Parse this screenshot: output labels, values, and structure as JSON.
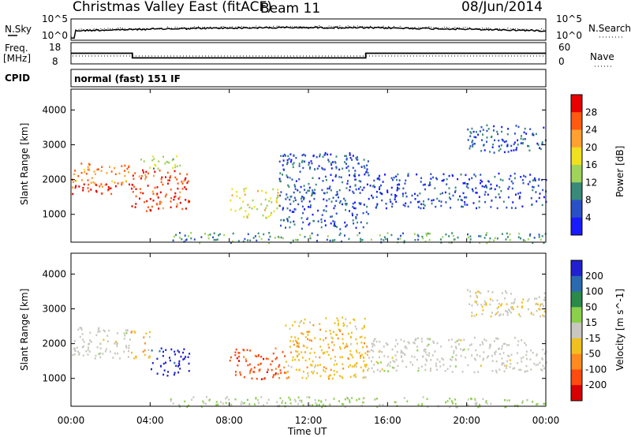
{
  "header": {
    "station": "Christmas Valley East (fitACF)",
    "beam": "Beam 11",
    "date": "08/Jun/2014"
  },
  "panels": {
    "nsky_label": "N.Sky",
    "nsky_ticks": [
      "10^5",
      "10^0"
    ],
    "nsearch_label": "N.Search",
    "nsearch_ticks": [
      "10^5",
      "10^0"
    ],
    "freq_label": "Freq.",
    "freq_unit": "[MHz]",
    "freq_ticks": [
      "18",
      "8"
    ],
    "nave_label": "Nave",
    "nave_ticks": [
      "60",
      "0"
    ],
    "cpid_label": "CPID",
    "cpid_value": "normal (fast) 151 IF"
  },
  "colors": {
    "power_scale": [
      "#1a1aff",
      "#2a50c8",
      "#3a8a7a",
      "#9fd35a",
      "#f0e020",
      "#ffa030",
      "#ff5a10",
      "#e80000"
    ],
    "velocity_scale": [
      "#2020d0",
      "#2a6ab0",
      "#2a8a4a",
      "#8ad04a",
      "#c8c8c0",
      "#f0c020",
      "#ff8a20",
      "#ff4a10",
      "#d80000"
    ]
  },
  "chart_data": [
    {
      "type": "line",
      "title": "",
      "series": [
        {
          "name": "N.Sky"
        },
        {
          "name": "N.Search"
        }
      ],
      "x_range": [
        "00:00",
        "24:00"
      ]
    },
    {
      "type": "line",
      "series": [
        {
          "name": "Freq.",
          "unit": "MHz"
        },
        {
          "name": "Nave"
        }
      ],
      "x": [
        0,
        3.1,
        3.1,
        14.9,
        14.9,
        24
      ],
      "freq_mhz": [
        13.0,
        13.0,
        10.8,
        10.8,
        13.0,
        13.0
      ]
    },
    {
      "type": "heatmap",
      "quantity": "Power",
      "colorbar_label": "Power [dB]",
      "colorbar_ticks": [
        "28",
        "24",
        "20",
        "16",
        "12",
        "8",
        "4"
      ],
      "zlim": [
        0,
        30
      ],
      "ylabel": "Slant Range [km]",
      "yticks": [
        "4000",
        "3000",
        "2000",
        "1000"
      ],
      "ylim": [
        200,
        4600
      ],
      "xlim": [
        0,
        24
      ],
      "blobs": [
        {
          "t0": 0.0,
          "t1": 3.0,
          "r0": 1800,
          "r1": 2500,
          "z": 22
        },
        {
          "t0": 0.0,
          "t1": 3.0,
          "r0": 1600,
          "r1": 1900,
          "z": 28
        },
        {
          "t0": 3.0,
          "t1": 6.0,
          "r0": 1100,
          "r1": 2300,
          "z": 26
        },
        {
          "t0": 3.5,
          "t1": 5.5,
          "r0": 2300,
          "r1": 2700,
          "z": 14
        },
        {
          "t0": 8.0,
          "t1": 10.5,
          "r0": 900,
          "r1": 1800,
          "z": 16
        },
        {
          "t0": 10.5,
          "t1": 15.0,
          "r0": 600,
          "r1": 2800,
          "z": 6
        },
        {
          "t0": 15.0,
          "t1": 24.0,
          "r0": 1200,
          "r1": 2200,
          "z": 5
        },
        {
          "t0": 20.0,
          "t1": 24.0,
          "r0": 2800,
          "r1": 3600,
          "z": 6
        },
        {
          "t0": 5.0,
          "t1": 24.0,
          "r0": 200,
          "r1": 500,
          "z": 10
        }
      ]
    },
    {
      "type": "heatmap",
      "quantity": "Velocity",
      "colorbar_label": "Velocity [m s^-1]",
      "colorbar_ticks": [
        "200",
        "100",
        "50",
        "15",
        "-15",
        "-50",
        "-100",
        "-200"
      ],
      "zlim": [
        -250,
        250
      ],
      "ylabel": "Slant Range [km]",
      "yticks": [
        "4000",
        "3000",
        "2000",
        "1000"
      ],
      "ylim": [
        200,
        4600
      ],
      "xlim": [
        0,
        24
      ],
      "xticks": [
        "00:00",
        "04:00",
        "08:00",
        "12:00",
        "16:00",
        "20:00",
        "00:00"
      ],
      "xlabel": "Time UT",
      "blobs": [
        {
          "t0": 0.0,
          "t1": 3.0,
          "r0": 1600,
          "r1": 2500,
          "z": 0
        },
        {
          "t0": 3.0,
          "t1": 4.0,
          "r0": 1600,
          "r1": 2400,
          "z": -60
        },
        {
          "t0": 4.0,
          "t1": 6.0,
          "r0": 1100,
          "r1": 1900,
          "z": 230
        },
        {
          "t0": 8.0,
          "t1": 10.8,
          "r0": 1000,
          "r1": 1900,
          "z": -160
        },
        {
          "t0": 10.8,
          "t1": 15.0,
          "r0": 1000,
          "r1": 2800,
          "z": -60
        },
        {
          "t0": 15.0,
          "t1": 24.0,
          "r0": 1200,
          "r1": 2200,
          "z": 0
        },
        {
          "t0": 20.0,
          "t1": 24.0,
          "r0": 2800,
          "r1": 3600,
          "z": -20
        },
        {
          "t0": 5.0,
          "t1": 24.0,
          "r0": 200,
          "r1": 500,
          "z": 30
        }
      ]
    }
  ]
}
